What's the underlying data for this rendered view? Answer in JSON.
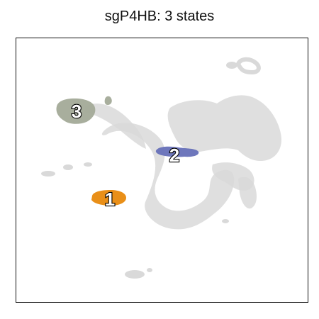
{
  "chart_data": {
    "type": "scatter",
    "title": "sgP4HB: 3 states",
    "xlabel": "",
    "ylabel": "",
    "grid": false,
    "axis_ticks": false,
    "background_points_color": "#d9d9d9",
    "states": [
      {
        "label": "1",
        "color": "#e8890c"
      },
      {
        "label": "2",
        "color": "#6670b8"
      },
      {
        "label": "3",
        "color": "#a3aa98"
      }
    ]
  }
}
